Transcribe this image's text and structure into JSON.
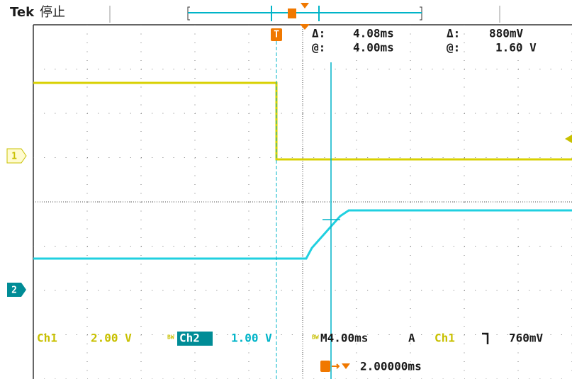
{
  "status": {
    "brand": "Tek",
    "state": "停止"
  },
  "trigger_marker": "T",
  "cursor_readout": {
    "delta_time_label": "Δ:",
    "delta_time": "4.08ms",
    "delta_volt_label": "Δ:",
    "delta_volt": "880mV",
    "at_time_label": "@:",
    "at_time": "4.00ms",
    "at_volt_label": "@:",
    "at_volt": "1.60 V"
  },
  "channel_markers": [
    "1",
    "2"
  ],
  "ch1": {
    "name": "Ch1",
    "scale": "2.00 V"
  },
  "ch2": {
    "bw": "BW",
    "name": "Ch2",
    "scale": "1.00 V"
  },
  "timebase": {
    "bw": "BW",
    "horizontal": "M4.00ms",
    "mode": "A",
    "source": "Ch1",
    "level": "760mV"
  },
  "trigger_position": "2.00000ms"
}
